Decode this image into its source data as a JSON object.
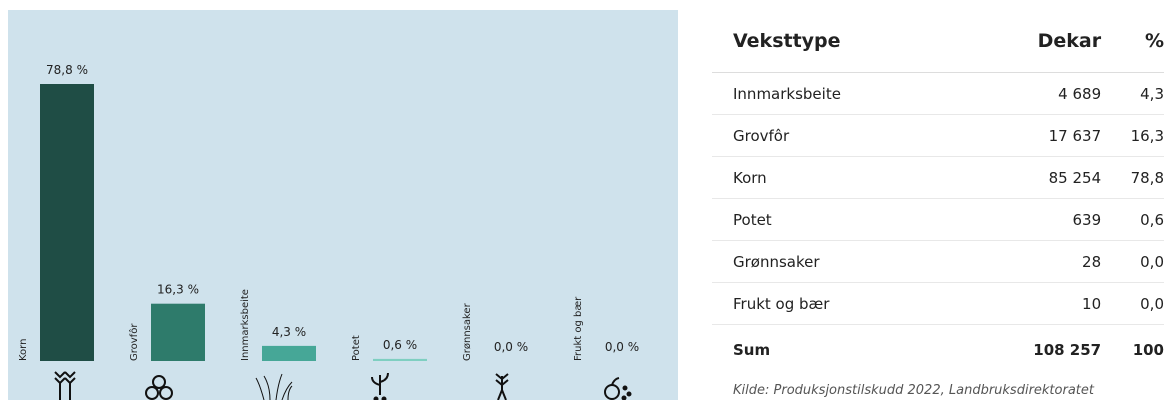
{
  "chart_data": {
    "type": "bar",
    "categories": [
      "Korn",
      "Grovfôr",
      "Innmarksbeite",
      "Potet",
      "Grønnsaker",
      "Frukt og bær"
    ],
    "values": [
      78.8,
      16.3,
      4.3,
      0.6,
      0.0,
      0.0
    ],
    "value_labels": [
      "78,8 %",
      "16,3 %",
      "4,3 %",
      "0,6 %",
      "0,0 %",
      "0,0 %"
    ],
    "colors": [
      "#1f4d45",
      "#2e7b6b",
      "#46a797",
      "#7fcfc1",
      "#9fdcd0",
      "#9fdcd0"
    ]
  },
  "table": {
    "header": [
      "Veksttype",
      "Dekar",
      "%"
    ],
    "rows": [
      [
        "Innmarksbeite",
        "4 689",
        "4,3"
      ],
      [
        "Grovfôr",
        "17 637",
        "16,3"
      ],
      [
        "Korn",
        "85 254",
        "78,8"
      ],
      [
        "Potet",
        "639",
        "0,6"
      ],
      [
        "Grønnsaker",
        "28",
        "0,0"
      ],
      [
        "Frukt og bær",
        "10",
        "0,0"
      ]
    ],
    "sum": [
      "Sum",
      "108 257",
      "100"
    ],
    "source": "Kilde: Produksjonstilskudd 2022, Landbruksdirektoratet"
  }
}
